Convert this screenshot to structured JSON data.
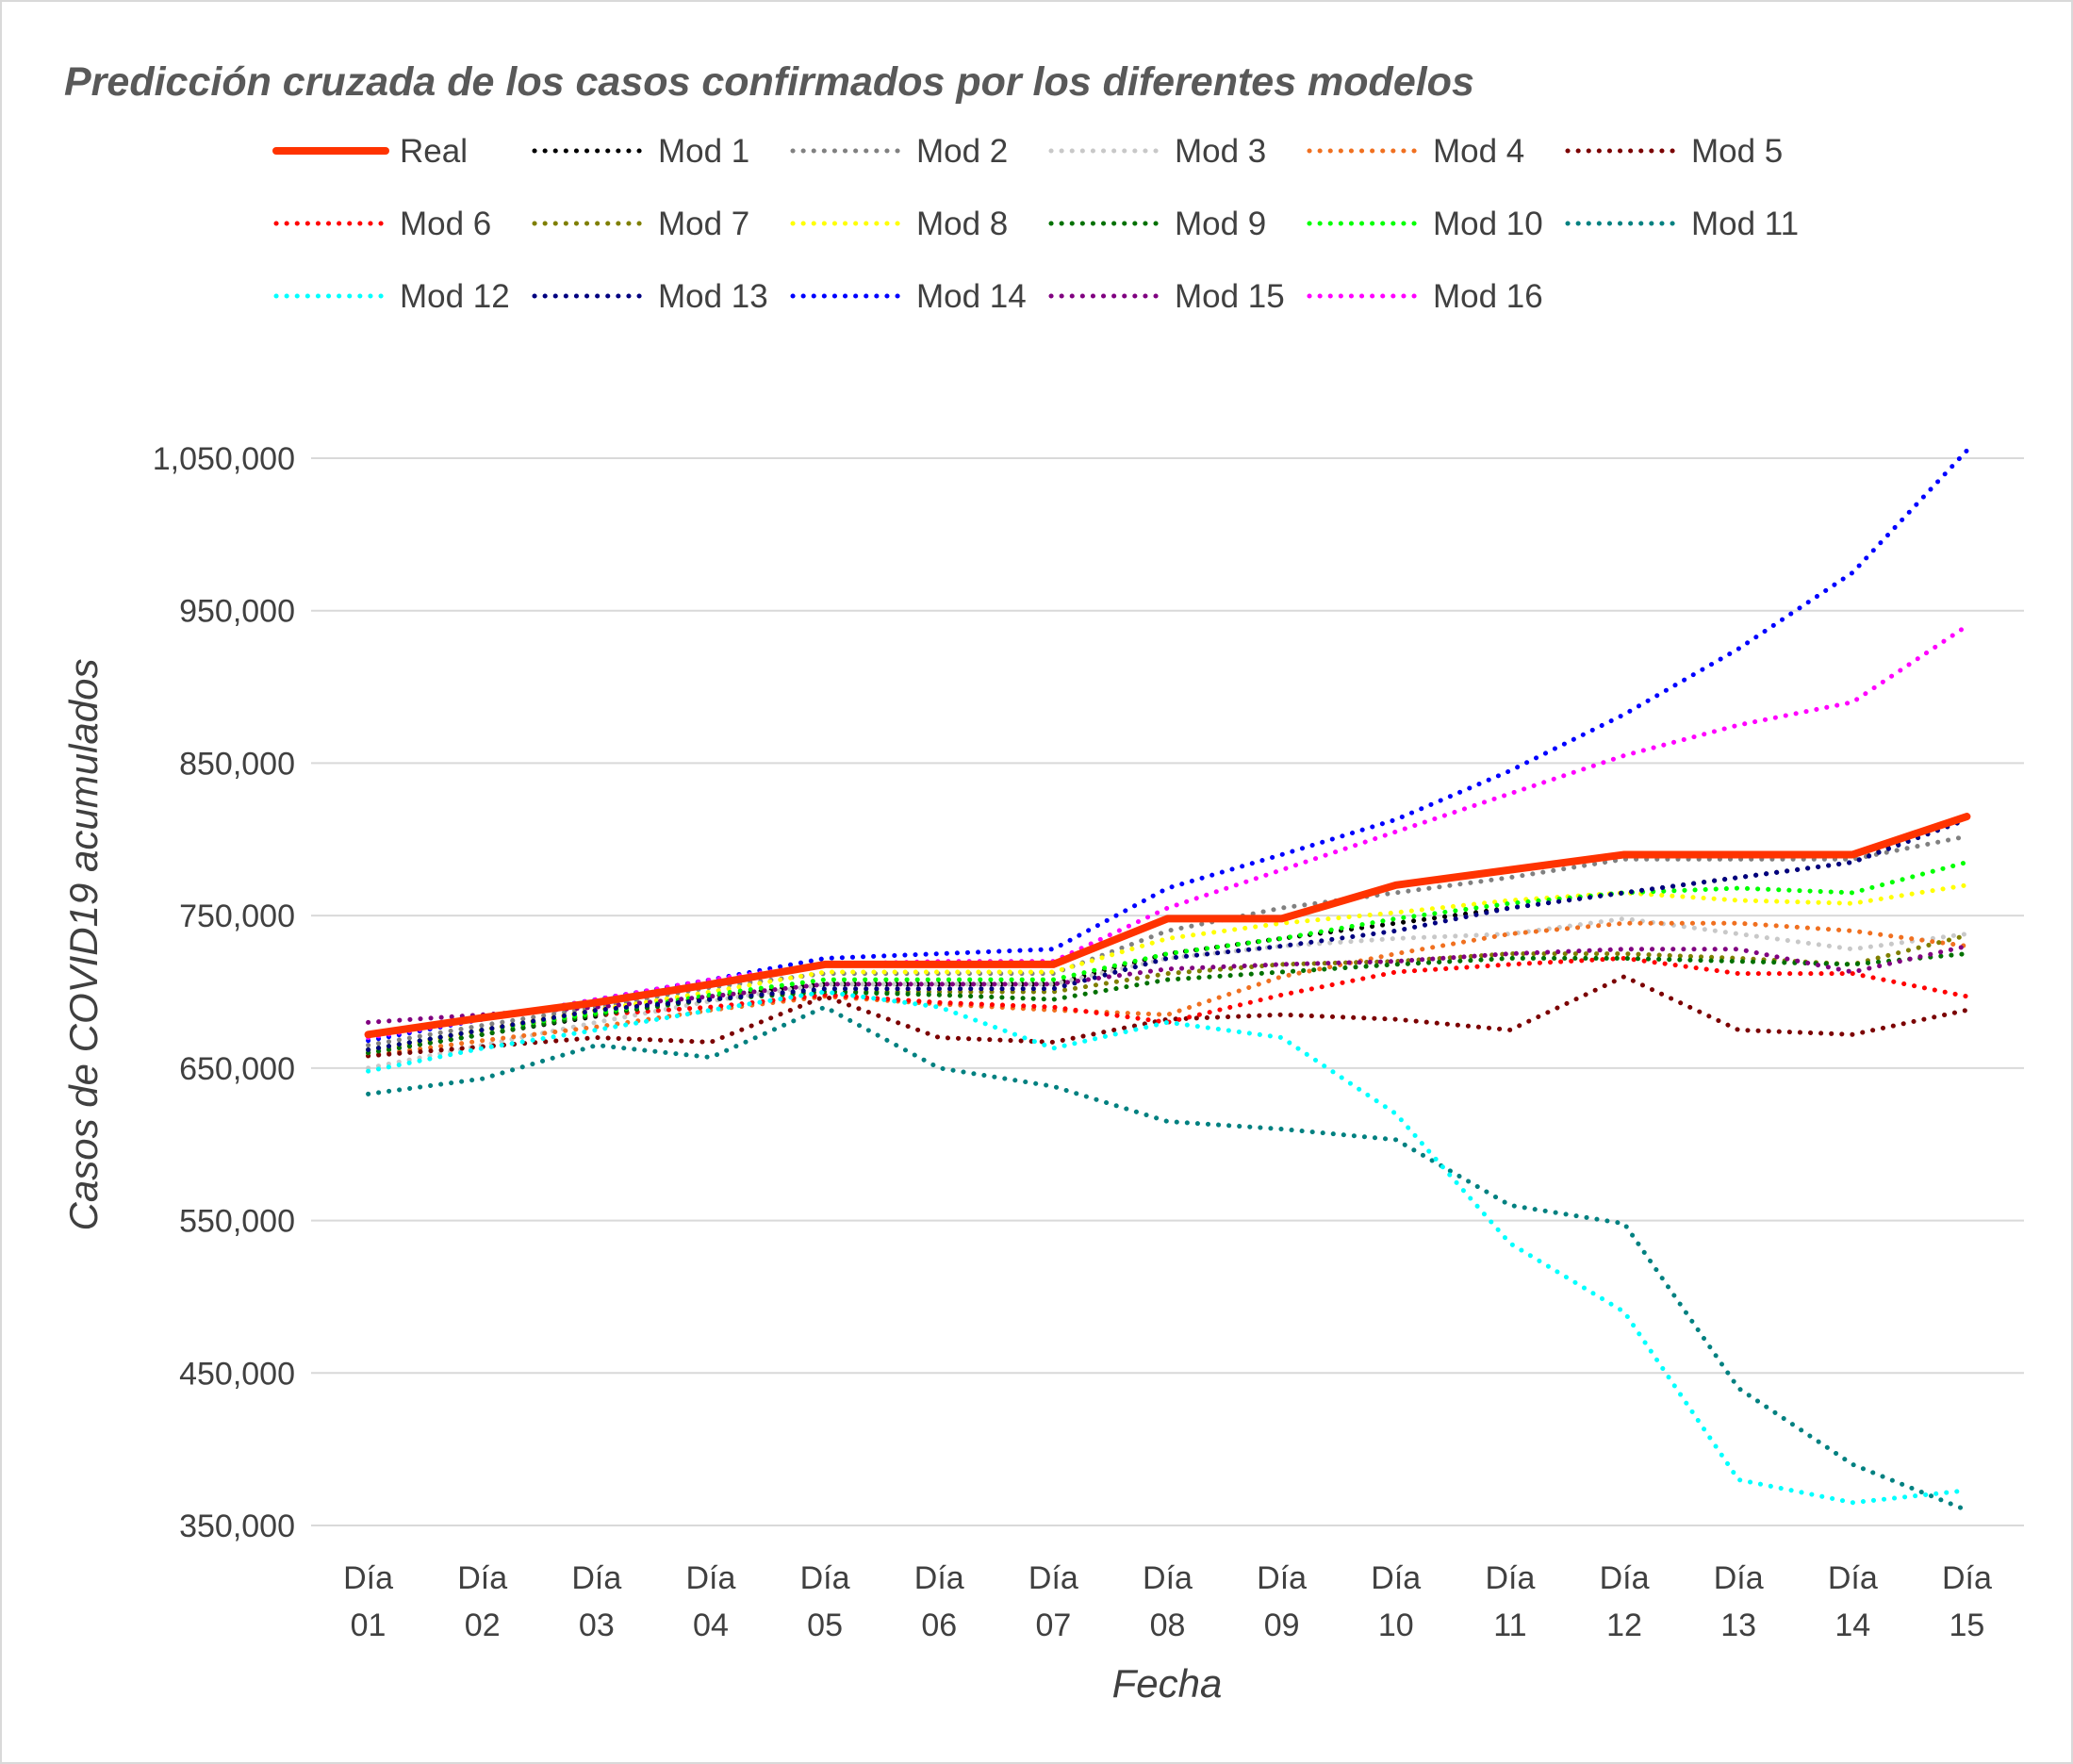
{
  "chart_data": {
    "type": "line",
    "title": "Predicción cruzada de los casos confirmados por los diferentes modelos",
    "xlabel": "Fecha",
    "ylabel": "Casos de COVID19 acumulados",
    "categories": [
      [
        "Día",
        "01"
      ],
      [
        "Día",
        "02"
      ],
      [
        "Día",
        "03"
      ],
      [
        "Día",
        "04"
      ],
      [
        "Día",
        "05"
      ],
      [
        "Día",
        "06"
      ],
      [
        "Día",
        "07"
      ],
      [
        "Día",
        "08"
      ],
      [
        "Día",
        "09"
      ],
      [
        "Día",
        "10"
      ],
      [
        "Día",
        "11"
      ],
      [
        "Día",
        "12"
      ],
      [
        "Día",
        "13"
      ],
      [
        "Día",
        "14"
      ],
      [
        "Día",
        "15"
      ]
    ],
    "ylim": [
      350000,
      1050000
    ],
    "yticks": [
      350000,
      450000,
      550000,
      650000,
      750000,
      850000,
      950000,
      1050000
    ],
    "ytick_labels": [
      "350,000",
      "450,000",
      "550,000",
      "650,000",
      "750,000",
      "850,000",
      "950,000",
      "1,050,000"
    ],
    "grid": true,
    "legend_position": "top",
    "series": [
      {
        "name": "Real",
        "color": "#ff3300",
        "style": "solid",
        "values": [
          672000,
          683000,
          693000,
          705000,
          718000,
          718000,
          718000,
          748000,
          748000,
          770000,
          780000,
          790000,
          790000,
          790000,
          815000
        ]
      },
      {
        "name": "Mod 1",
        "color": "#000000",
        "style": "dotted",
        "values": [
          660000,
          672000,
          684000,
          697000,
          705000,
          705000,
          705000,
          725000,
          735000,
          745000,
          755000,
          765000,
          775000,
          785000,
          815000
        ]
      },
      {
        "name": "Mod 2",
        "color": "#808080",
        "style": "dotted",
        "values": [
          665000,
          678000,
          690000,
          703000,
          712000,
          712000,
          712000,
          740000,
          755000,
          765000,
          775000,
          787000,
          787000,
          787000,
          802000
        ]
      },
      {
        "name": "Mod 3",
        "color": "#c8c8c8",
        "style": "dotted",
        "values": [
          650000,
          665000,
          680000,
          694000,
          705000,
          705000,
          705000,
          722000,
          730000,
          735000,
          738000,
          748000,
          738000,
          728000,
          738000
        ]
      },
      {
        "name": "Mod 4",
        "color": "#f07020",
        "style": "dotted",
        "values": [
          658000,
          668000,
          677000,
          688000,
          697000,
          692000,
          688000,
          685000,
          710000,
          725000,
          738000,
          745000,
          745000,
          740000,
          730000
        ]
      },
      {
        "name": "Mod 5",
        "color": "#7b0000",
        "style": "dotted",
        "values": [
          658000,
          664000,
          670000,
          667000,
          697000,
          670000,
          667000,
          682000,
          685000,
          682000,
          675000,
          710000,
          675000,
          672000,
          688000
        ]
      },
      {
        "name": "Mod 6",
        "color": "#ff0000",
        "style": "dotted",
        "values": [
          662000,
          675000,
          685000,
          690000,
          698000,
          693000,
          690000,
          680000,
          698000,
          713000,
          718000,
          722000,
          712000,
          712000,
          697000
        ]
      },
      {
        "name": "Mod 7",
        "color": "#7f7f00",
        "style": "dotted",
        "values": [
          662000,
          675000,
          688000,
          697000,
          700000,
          700000,
          700000,
          712000,
          718000,
          720000,
          725000,
          725000,
          722000,
          718000,
          737000
        ]
      },
      {
        "name": "Mod 8",
        "color": "#ffff00",
        "style": "dotted",
        "values": [
          660000,
          675000,
          688000,
          700000,
          713000,
          713000,
          713000,
          735000,
          745000,
          752000,
          760000,
          765000,
          760000,
          758000,
          770000
        ]
      },
      {
        "name": "Mod 9",
        "color": "#007000",
        "style": "dotted",
        "values": [
          660000,
          672000,
          685000,
          695000,
          700000,
          698000,
          695000,
          708000,
          713000,
          718000,
          722000,
          722000,
          720000,
          718000,
          725000
        ]
      },
      {
        "name": "Mod 10",
        "color": "#00ff00",
        "style": "dotted",
        "values": [
          662000,
          675000,
          686000,
          698000,
          708000,
          708000,
          708000,
          725000,
          735000,
          748000,
          758000,
          765000,
          768000,
          765000,
          785000
        ]
      },
      {
        "name": "Mod 11",
        "color": "#008080",
        "style": "dotted",
        "values": [
          633000,
          643000,
          665000,
          657000,
          690000,
          650000,
          638000,
          615000,
          610000,
          603000,
          560000,
          548000,
          440000,
          390000,
          360000
        ]
      },
      {
        "name": "Mod 12",
        "color": "#00ffff",
        "style": "dotted",
        "values": [
          648000,
          663000,
          675000,
          688000,
          700000,
          690000,
          663000,
          680000,
          670000,
          620000,
          535000,
          490000,
          380000,
          365000,
          373000
        ]
      },
      {
        "name": "Mod 13",
        "color": "#000080",
        "style": "dotted",
        "values": [
          662000,
          675000,
          688000,
          695000,
          702000,
          702000,
          702000,
          722000,
          730000,
          740000,
          755000,
          765000,
          775000,
          785000,
          813000
        ]
      },
      {
        "name": "Mod 14",
        "color": "#0000ff",
        "style": "dotted",
        "values": [
          668000,
          682000,
          695000,
          708000,
          722000,
          725000,
          728000,
          768000,
          790000,
          813000,
          845000,
          882000,
          925000,
          975000,
          1055000
        ]
      },
      {
        "name": "Mod 15",
        "color": "#800080",
        "style": "dotted",
        "values": [
          680000,
          685000,
          690000,
          697000,
          705000,
          705000,
          705000,
          715000,
          718000,
          720000,
          725000,
          728000,
          728000,
          713000,
          730000
        ]
      },
      {
        "name": "Mod 16",
        "color": "#ff00ff",
        "style": "dotted",
        "values": [
          670000,
          682000,
          695000,
          708000,
          718000,
          720000,
          720000,
          755000,
          780000,
          805000,
          830000,
          855000,
          875000,
          890000,
          940000
        ]
      }
    ]
  }
}
